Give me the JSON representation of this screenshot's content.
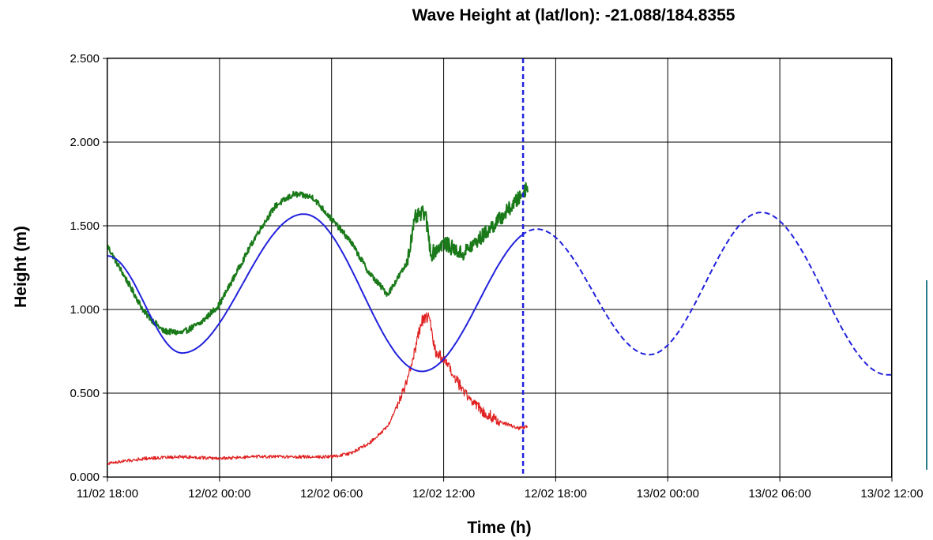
{
  "chart_data": {
    "type": "line",
    "title": "Wave Height at (lat/lon): -21.088/184.8355",
    "xlabel": "Time (h)",
    "ylabel": "Height (m)",
    "xlim": [
      "11/02 18:00",
      "13/02 12:00"
    ],
    "ylim": [
      0,
      2.5
    ],
    "grid": true,
    "legend": "none",
    "x_tick_labels": [
      "11/02 18:00",
      "12/02 00:00",
      "12/02 06:00",
      "12/02 12:00",
      "12/02 18:00",
      "13/02 00:00",
      "13/02 06:00",
      "13/02 12:00"
    ],
    "y_tick_labels": [
      "0.000",
      "0.500",
      "1.000",
      "1.500",
      "2.000",
      "2.500"
    ],
    "current_time_marker": {
      "x": "12/02 16:15",
      "color": "#2222dd",
      "style": "dashed"
    },
    "series": [
      {
        "color": "#1a7a1a",
        "style": "solid noisy",
        "x": [
          "11/02 18:00",
          "11/02 19:00",
          "11/02 20:00",
          "11/02 21:00",
          "11/02 22:00",
          "11/02 23:00",
          "12/02 00:00",
          "12/02 01:00",
          "12/02 02:00",
          "12/02 03:00",
          "12/02 04:00",
          "12/02 05:00",
          "12/02 06:00",
          "12/02 07:00",
          "12/02 08:00",
          "12/02 09:00",
          "12/02 10:00",
          "12/02 10:30",
          "12/02 11:00",
          "12/02 11:20",
          "12/02 12:00",
          "12/02 13:00",
          "12/02 14:00",
          "12/02 15:00",
          "12/02 16:00",
          "12/02 16:30"
        ],
        "values": [
          1.38,
          1.18,
          0.98,
          0.87,
          0.86,
          0.92,
          1.03,
          1.24,
          1.45,
          1.62,
          1.69,
          1.67,
          1.54,
          1.41,
          1.22,
          1.09,
          1.27,
          1.55,
          1.58,
          1.33,
          1.4,
          1.33,
          1.43,
          1.54,
          1.66,
          1.74
        ]
      },
      {
        "color": "#e02020",
        "style": "solid noisy",
        "x": [
          "11/02 18:00",
          "11/02 20:00",
          "11/02 22:00",
          "12/02 00:00",
          "12/02 02:00",
          "12/02 04:00",
          "12/02 06:00",
          "12/02 07:00",
          "12/02 08:00",
          "12/02 09:00",
          "12/02 10:00",
          "12/02 10:50",
          "12/02 11:15",
          "12/02 11:30",
          "12/02 12:00",
          "12/02 13:00",
          "12/02 14:00",
          "12/02 15:00",
          "12/02 16:00",
          "12/02 16:30"
        ],
        "values": [
          0.08,
          0.11,
          0.12,
          0.11,
          0.12,
          0.12,
          0.12,
          0.14,
          0.2,
          0.3,
          0.55,
          0.93,
          0.96,
          0.76,
          0.7,
          0.52,
          0.4,
          0.33,
          0.29,
          0.3
        ]
      },
      {
        "color": "#2222dd",
        "style": "solid before marker, dashed after",
        "x": [
          "11/02 18:00",
          "11/02 22:00",
          "12/02 04:30",
          "12/02 10:50",
          "12/02 17:00",
          "12/02 23:00",
          "13/02 05:00",
          "13/02 11:45",
          "13/02 12:00"
        ],
        "values": [
          1.32,
          0.74,
          1.57,
          0.63,
          1.48,
          0.73,
          1.58,
          0.61,
          0.61
        ],
        "curve": "smooth"
      }
    ]
  }
}
